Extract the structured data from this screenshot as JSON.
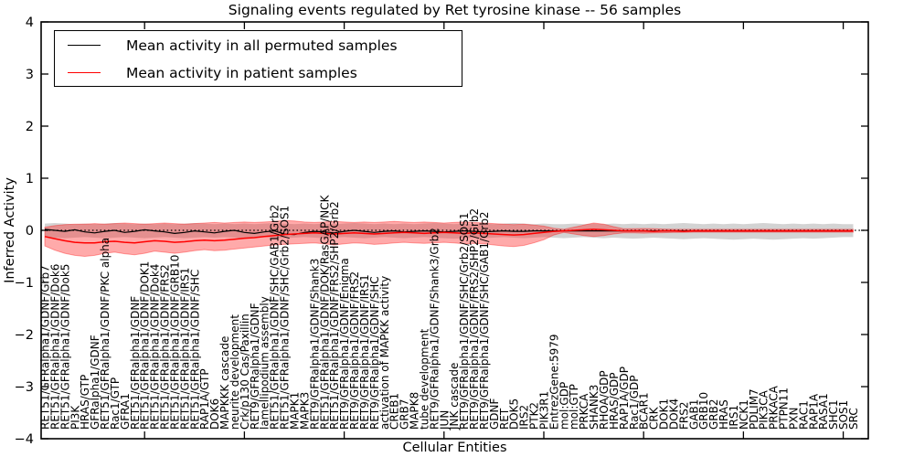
{
  "figure": {
    "title": "Signaling events regulated by Ret tyrosine kinase -- 56 samples",
    "xlabel": "Cellular Entities",
    "ylabel": "Inferred Activity"
  },
  "legend": {
    "items": [
      {
        "label": "Mean activity in all permuted samples",
        "color": "#000000"
      },
      {
        "label": "Mean activity in patient samples",
        "color": "#ff0000"
      }
    ]
  },
  "chart_data": {
    "type": "line",
    "title": "Signaling events regulated by Ret tyrosine kinase -- 56 samples",
    "xlabel": "Cellular Entities",
    "ylabel": "Inferred Activity",
    "ylim": [
      -4,
      4
    ],
    "yticks": [
      "4",
      "3",
      "2",
      "1",
      "0",
      "−1",
      "−2",
      "−3",
      "−4"
    ],
    "ytick_values": [
      4,
      3,
      2,
      1,
      0,
      -1,
      -2,
      -3,
      -4
    ],
    "x_major_tick_every": 10,
    "grid": false,
    "legend_position": "upper left",
    "zero_line": true,
    "colors": {
      "permuted_line": "#000000",
      "patient_line": "#ff0000",
      "permuted_band": "rgba(128,128,128,0.35)",
      "patient_band": "rgba(255,32,32,0.38)",
      "patient_band_edge": "rgba(255,0,0,0.35)"
    },
    "categories": [
      "RET51/GFRalpha1/GDNF/Grb7",
      "RET51/GFRalpha1/GDNF/Dok6",
      "RET51/GFRalpha1/GDNF/Dok5",
      "PI3K",
      "HRAS/GTP",
      "GFRalpha1/GDNF",
      "RET51/GFRalpha1/GDNF/PKC alpha",
      "Rac1/GTP",
      "GFRA1",
      "RET51/GFRalpha1/GDNF",
      "RET51/GFRalpha1/GDNF/DOK1",
      "RET51/GFRalpha1/GDNF/Dok4",
      "RET51/GFRalpha1/GDNF/FRS2",
      "RET51/GFRalpha1/GDNF/GRB10",
      "RET51/GFRalpha1/GDNF/IRS1",
      "RET51/GFRalpha1/GDNF/SHC",
      "RAP1A/GTP",
      "DOK6",
      "MAPKKK cascade",
      "neurite development",
      "Crk/p130 Cas/Paxillin",
      "RET9/GFRalpha1/GDNF",
      "lamellipodium assembly",
      "RET51/GFRalpha1/GDNF/SHC/GAB1/Grb2",
      "RET51/GFRalpha1/GDNF/SHC/Grb2/SOS1",
      "MAPK1",
      "MAPK3",
      "RET9/GFRalpha1/GDNF/Shank3",
      "RET51/GFRalpha1/GDNF/DOK/RasGAP/NCK",
      "RET51/GFRalpha1/GDNF/FRS2/SHP2/Grb2",
      "RET9/GFRalpha1/GDNF/Enigma",
      "RET9/GFRalpha1/GDNF/FRS2",
      "RET9/GFRalpha1/GDNF/IRS1",
      "RET9/GFRalpha1/GDNF/SHC",
      "activation of MAPKK activity",
      "CREB1",
      "GRB7",
      "MAPK8",
      "tube development",
      "RET9/GFRalpha1/GDNF/Shank3/Grb2",
      "JUN",
      "JNK cascade",
      "RET9/GFRalpha1/GDNF/SHC/Grb2/SOS1",
      "RET9/GFRalpha1/GDNF/FRS2/SHP2/Grb2",
      "RET9/GFRalpha1/GDNF/SHC/GAB1/Grb2",
      "GDNF",
      "RET",
      "DOK5",
      "IRS2",
      "PTK2",
      "PIK3R1",
      "EntrezGene:5979",
      "mol:GDP",
      "mol:GTP",
      "PRKCA",
      "SHANK3",
      "RHOA/GDP",
      "HRAS/GDP",
      "RAP1A/GDP",
      "Rac1/GDP",
      "BCAR1",
      "CRK",
      "DOK1",
      "DOK4",
      "FRS2",
      "GAB1",
      "GRB10",
      "GRB2",
      "HRAS",
      "IRS1",
      "NCK1",
      "PDLIM7",
      "PIK3CA",
      "PRKACA",
      "PTPN11",
      "PXN",
      "RAC1",
      "RAP1A",
      "RASA1",
      "SHC1",
      "SOS1",
      "SRC"
    ],
    "series": [
      {
        "name": "Mean activity in all permuted samples",
        "color": "#000000",
        "values": [
          0.02,
          0.0,
          -0.02,
          0.01,
          -0.03,
          -0.05,
          -0.02,
          0.0,
          -0.04,
          -0.02,
          0.01,
          -0.01,
          -0.03,
          -0.06,
          -0.04,
          -0.01,
          -0.03,
          -0.05,
          -0.02,
          0.0,
          -0.04,
          -0.06,
          -0.03,
          -0.01,
          -0.07,
          -0.08,
          -0.04,
          -0.02,
          -0.03,
          -0.05,
          -0.02,
          0.0,
          -0.02,
          -0.04,
          -0.02,
          -0.01,
          -0.03,
          -0.02,
          -0.01,
          -0.02,
          -0.03,
          -0.02,
          -0.01,
          -0.02,
          -0.03,
          -0.02,
          -0.01,
          -0.02,
          -0.02,
          -0.01,
          -0.01,
          -0.01,
          -0.01,
          -0.01,
          -0.01,
          -0.01,
          -0.01,
          -0.01,
          -0.01,
          -0.01,
          -0.01,
          -0.01,
          -0.01,
          -0.01,
          -0.01,
          -0.01,
          -0.01,
          -0.01,
          -0.01,
          -0.01,
          -0.01,
          -0.01,
          -0.01,
          -0.01,
          -0.01,
          -0.01,
          -0.01,
          -0.01,
          -0.01,
          -0.01,
          -0.01,
          -0.01
        ],
        "band_hi": [
          0.13,
          0.14,
          0.13,
          0.12,
          0.13,
          0.12,
          0.13,
          0.14,
          0.13,
          0.12,
          0.13,
          0.12,
          0.13,
          0.12,
          0.13,
          0.14,
          0.13,
          0.12,
          0.13,
          0.12,
          0.13,
          0.12,
          0.13,
          0.14,
          0.13,
          0.12,
          0.13,
          0.12,
          0.13,
          0.12,
          0.13,
          0.14,
          0.13,
          0.12,
          0.13,
          0.12,
          0.13,
          0.12,
          0.13,
          0.14,
          0.13,
          0.12,
          0.13,
          0.12,
          0.13,
          0.12,
          0.13,
          0.14,
          0.13,
          0.12,
          0.13,
          0.12,
          0.12,
          0.13,
          0.12,
          0.13,
          0.12,
          0.13,
          0.12,
          0.13,
          0.12,
          0.13,
          0.12,
          0.13,
          0.14,
          0.13,
          0.12,
          0.13,
          0.12,
          0.13,
          0.12,
          0.13,
          0.14,
          0.13,
          0.12,
          0.13,
          0.12,
          0.13,
          0.12,
          0.13,
          0.12,
          0.12
        ],
        "band_lo": [
          -0.13,
          -0.14,
          -0.15,
          -0.14,
          -0.13,
          -0.14,
          -0.15,
          -0.14,
          -0.13,
          -0.14,
          -0.15,
          -0.14,
          -0.13,
          -0.14,
          -0.15,
          -0.14,
          -0.13,
          -0.14,
          -0.13,
          -0.14,
          -0.15,
          -0.14,
          -0.13,
          -0.14,
          -0.15,
          -0.14,
          -0.13,
          -0.14,
          -0.15,
          -0.14,
          -0.13,
          -0.14,
          -0.15,
          -0.14,
          -0.13,
          -0.14,
          -0.15,
          -0.14,
          -0.13,
          -0.14,
          -0.15,
          -0.16,
          -0.15,
          -0.14,
          -0.15,
          -0.14,
          -0.13,
          -0.14,
          -0.15,
          -0.14,
          -0.13,
          -0.14,
          -0.15,
          -0.14,
          -0.13,
          -0.14,
          -0.15,
          -0.14,
          -0.15,
          -0.16,
          -0.15,
          -0.14,
          -0.15,
          -0.16,
          -0.17,
          -0.16,
          -0.15,
          -0.16,
          -0.17,
          -0.18,
          -0.17,
          -0.16,
          -0.17,
          -0.18,
          -0.17,
          -0.16,
          -0.15,
          -0.16,
          -0.15,
          -0.14,
          -0.13,
          -0.13
        ]
      },
      {
        "name": "Mean activity in patient samples",
        "color": "#ff0000",
        "values": [
          -0.12,
          -0.16,
          -0.2,
          -0.23,
          -0.24,
          -0.24,
          -0.22,
          -0.21,
          -0.23,
          -0.24,
          -0.22,
          -0.2,
          -0.21,
          -0.23,
          -0.22,
          -0.2,
          -0.19,
          -0.2,
          -0.19,
          -0.17,
          -0.15,
          -0.14,
          -0.12,
          -0.1,
          -0.08,
          -0.07,
          -0.06,
          -0.05,
          -0.06,
          -0.07,
          -0.06,
          -0.05,
          -0.06,
          -0.07,
          -0.06,
          -0.05,
          -0.04,
          -0.05,
          -0.06,
          -0.05,
          -0.04,
          -0.05,
          -0.06,
          -0.05,
          -0.06,
          -0.07,
          -0.08,
          -0.09,
          -0.08,
          -0.06,
          -0.04,
          -0.02,
          -0.01,
          0.0,
          0.01,
          0.02,
          0.01,
          0.0,
          -0.01,
          -0.01,
          -0.01,
          -0.02,
          -0.01,
          -0.01,
          -0.02,
          -0.01,
          -0.01,
          -0.01,
          -0.01,
          -0.01,
          -0.01,
          -0.01,
          -0.01,
          -0.01,
          -0.01,
          -0.01,
          -0.01,
          -0.01,
          -0.01,
          -0.01,
          -0.01,
          -0.01
        ],
        "band_hi": [
          0.06,
          0.09,
          0.11,
          0.12,
          0.12,
          0.13,
          0.12,
          0.13,
          0.14,
          0.13,
          0.12,
          0.13,
          0.14,
          0.13,
          0.12,
          0.13,
          0.14,
          0.15,
          0.14,
          0.15,
          0.16,
          0.15,
          0.16,
          0.17,
          0.19,
          0.18,
          0.16,
          0.15,
          0.16,
          0.17,
          0.16,
          0.15,
          0.16,
          0.15,
          0.16,
          0.17,
          0.16,
          0.15,
          0.16,
          0.15,
          0.14,
          0.15,
          0.16,
          0.15,
          0.14,
          0.13,
          0.12,
          0.11,
          0.12,
          0.1,
          0.08,
          0.04,
          0.02,
          0.06,
          0.1,
          0.14,
          0.12,
          0.07,
          0.03,
          0.03,
          0.035,
          0.03,
          0.025,
          0.02,
          0.02,
          0.02,
          0.02,
          0.02,
          0.02,
          0.02,
          0.02,
          0.02,
          0.02,
          0.02,
          0.02,
          0.02,
          0.02,
          0.02,
          0.02,
          0.02,
          0.02,
          0.02
        ],
        "band_lo": [
          -0.3,
          -0.38,
          -0.44,
          -0.48,
          -0.5,
          -0.48,
          -0.44,
          -0.42,
          -0.45,
          -0.47,
          -0.44,
          -0.4,
          -0.42,
          -0.44,
          -0.42,
          -0.39,
          -0.37,
          -0.39,
          -0.38,
          -0.36,
          -0.34,
          -0.32,
          -0.3,
          -0.28,
          -0.27,
          -0.26,
          -0.25,
          -0.24,
          -0.26,
          -0.28,
          -0.26,
          -0.24,
          -0.25,
          -0.27,
          -0.26,
          -0.24,
          -0.23,
          -0.24,
          -0.25,
          -0.24,
          -0.23,
          -0.24,
          -0.26,
          -0.25,
          -0.26,
          -0.28,
          -0.3,
          -0.31,
          -0.29,
          -0.24,
          -0.18,
          -0.09,
          -0.04,
          -0.07,
          -0.1,
          -0.12,
          -0.1,
          -0.07,
          -0.05,
          -0.05,
          -0.055,
          -0.05,
          -0.045,
          -0.04,
          -0.04,
          -0.035,
          -0.035,
          -0.035,
          -0.035,
          -0.035,
          -0.035,
          -0.035,
          -0.035,
          -0.035,
          -0.035,
          -0.035,
          -0.035,
          -0.035,
          -0.035,
          -0.035,
          -0.035,
          -0.035
        ]
      }
    ]
  }
}
